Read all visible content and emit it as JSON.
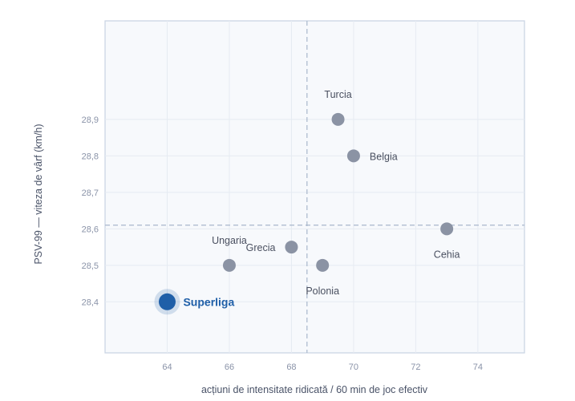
{
  "chart_data": {
    "type": "scatter",
    "xlabel": "acțiuni de intensitate ridicată / 60 min de joc efectiv",
    "ylabel": "PSV-99 — viteza de vârf (km/h)",
    "xlim": [
      62,
      75.5
    ],
    "ylim": [
      28.26,
      29.17
    ],
    "xticks": [
      64,
      66,
      68,
      70,
      72,
      74
    ],
    "yticks": [
      28.4,
      28.5,
      28.6,
      28.7,
      28.8,
      28.9
    ],
    "xtick_labels": [
      "64",
      "66",
      "68",
      "70",
      "72",
      "74"
    ],
    "ytick_labels": [
      "28,4",
      "28,5",
      "28,6",
      "28,7",
      "28,8",
      "28,9"
    ],
    "reference_lines": {
      "x": 68.5,
      "y": 28.61
    },
    "grid": true,
    "colors": {
      "point": "#8b93a4",
      "highlight": "#1f5fa8",
      "plot_bg": "#f7f9fc",
      "frame": "#c8d3e2",
      "reference": "#a9b7cb"
    },
    "points": [
      {
        "label": "Turcia",
        "x": 69.5,
        "y": 28.9,
        "label_pos": "above"
      },
      {
        "label": "Belgia",
        "x": 70.0,
        "y": 28.8,
        "label_pos": "right"
      },
      {
        "label": "Cehia",
        "x": 73.0,
        "y": 28.6,
        "label_pos": "below"
      },
      {
        "label": "Ungaria",
        "x": 66.0,
        "y": 28.5,
        "label_pos": "above"
      },
      {
        "label": "Grecia",
        "x": 68.0,
        "y": 28.55,
        "label_pos": "left"
      },
      {
        "label": "Polonia",
        "x": 69.0,
        "y": 28.5,
        "label_pos": "below"
      },
      {
        "label": "Superliga",
        "x": 64.0,
        "y": 28.4,
        "label_pos": "right",
        "highlight": true
      }
    ]
  }
}
